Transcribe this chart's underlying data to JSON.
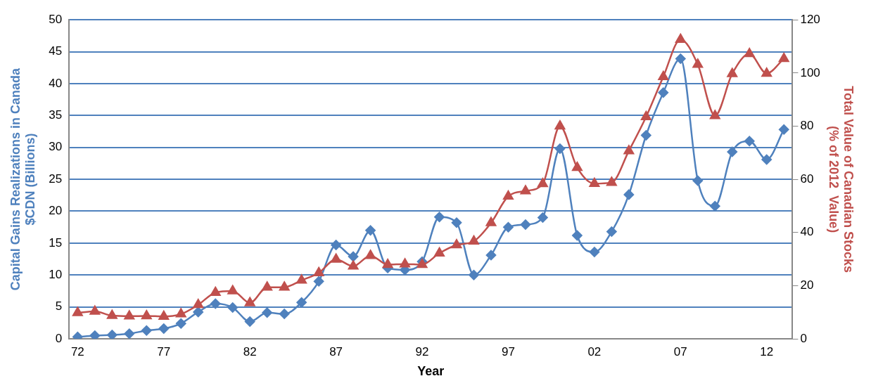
{
  "chart_data": {
    "type": "line",
    "xlabel": "Year",
    "ylabel": "Capital Gains Realizations in Canada\n$CDN (Billions)",
    "y2label": "Total Value of Canadian Stocks\n(% of 2012  Value)",
    "categories": [
      "72",
      null,
      null,
      null,
      null,
      "77",
      null,
      null,
      null,
      null,
      "82",
      null,
      null,
      null,
      null,
      "87",
      null,
      null,
      null,
      null,
      "92",
      null,
      null,
      null,
      null,
      "97",
      null,
      null,
      null,
      null,
      "02",
      null,
      null,
      null,
      null,
      "07",
      null,
      null,
      null,
      null,
      "12",
      null
    ],
    "ylim": [
      0,
      50
    ],
    "yticks": [
      0,
      5,
      10,
      15,
      20,
      25,
      30,
      35,
      40,
      45,
      50
    ],
    "y2lim": [
      0,
      120
    ],
    "y2ticks": [
      0,
      20,
      40,
      60,
      80,
      100,
      120
    ],
    "grid": "y",
    "legend": false,
    "series": [
      {
        "color": "#4f81bd",
        "marker": "diamond",
        "values": [
          0.3,
          0.5,
          0.6,
          0.8,
          1.3,
          1.6,
          2.4,
          4.2,
          5.5,
          4.9,
          2.7,
          4.1,
          3.9,
          5.7,
          9.0,
          14.7,
          12.9,
          17.0,
          11.1,
          10.8,
          12.1,
          19.1,
          18.2,
          10.0,
          13.1,
          17.5,
          17.9,
          19.0,
          29.8,
          16.2,
          13.6,
          16.8,
          22.6,
          31.9,
          38.6,
          43.9,
          24.8,
          20.8,
          29.3,
          31.0,
          28.1,
          32.8
        ]
      },
      {
        "color": "#c0504d",
        "marker": "triangle",
        "axis": "y2",
        "values": [
          9.8,
          10.3,
          8.7,
          8.5,
          8.6,
          8.4,
          9.3,
          12.8,
          17.4,
          18.0,
          13.5,
          19.4,
          19.4,
          22.0,
          24.8,
          29.9,
          27.3,
          31.3,
          27.9,
          28.1,
          27.9,
          32.2,
          35.3,
          36.7,
          43.6,
          53.6,
          55.6,
          58.3,
          80.0,
          64.4,
          58.4,
          58.8,
          70.7,
          83.5,
          98.6,
          112.6,
          103.2,
          83.9,
          99.7,
          107.2,
          99.8,
          105.4
        ]
      }
    ]
  }
}
